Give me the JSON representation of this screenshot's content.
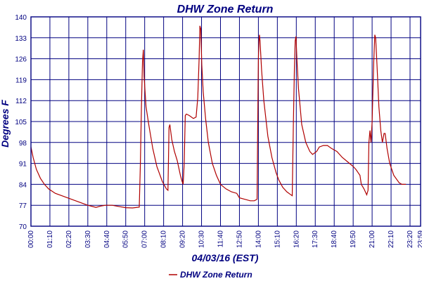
{
  "chart_data": {
    "type": "line",
    "title": "DHW Zone Return",
    "xlabel": "04/03/16 (EST)",
    "ylabel": "Degrees F",
    "ylim": [
      70,
      140
    ],
    "y_ticks": [
      "70",
      "77",
      "84",
      "91",
      "98",
      "105",
      "112",
      "119",
      "126",
      "133",
      "140"
    ],
    "x_ticks": [
      "00:00",
      "01:10",
      "02:20",
      "03:30",
      "04:40",
      "05:50",
      "07:00",
      "08:10",
      "09:20",
      "10:30",
      "11:40",
      "12:50",
      "14:00",
      "15:10",
      "16:20",
      "17:30",
      "18:40",
      "19:50",
      "21:00",
      "22:10",
      "23:20",
      "23:59"
    ],
    "grid": true,
    "legend_position": "bottom",
    "line_color": "#b00000",
    "grid_color": "#000080",
    "series": [
      {
        "name": "DHW Zone Return",
        "points": [
          [
            "00:00",
            96.5
          ],
          [
            "00:08",
            93
          ],
          [
            "00:20",
            89
          ],
          [
            "00:35",
            86
          ],
          [
            "00:50",
            84
          ],
          [
            "01:05",
            82.5
          ],
          [
            "01:30",
            81
          ],
          [
            "02:00",
            80
          ],
          [
            "02:30",
            79
          ],
          [
            "03:00",
            78
          ],
          [
            "03:30",
            77
          ],
          [
            "04:00",
            76.3
          ],
          [
            "04:20",
            76.8
          ],
          [
            "04:35",
            77
          ],
          [
            "05:00",
            77
          ],
          [
            "05:30",
            76.5
          ],
          [
            "05:50",
            76.2
          ],
          [
            "06:15",
            76.1
          ],
          [
            "06:40",
            76.4
          ],
          [
            "06:44",
            90
          ],
          [
            "06:48",
            110
          ],
          [
            "06:52",
            125
          ],
          [
            "06:55",
            129
          ],
          [
            "06:58",
            120
          ],
          [
            "07:05",
            110
          ],
          [
            "07:15",
            104
          ],
          [
            "07:30",
            96
          ],
          [
            "07:45",
            90
          ],
          [
            "08:05",
            85
          ],
          [
            "08:20",
            82.5
          ],
          [
            "08:26",
            82
          ],
          [
            "08:30",
            103
          ],
          [
            "08:33",
            104
          ],
          [
            "08:40",
            99
          ],
          [
            "08:50",
            95
          ],
          [
            "09:00",
            92
          ],
          [
            "09:12",
            87
          ],
          [
            "09:18",
            85
          ],
          [
            "09:22",
            84
          ],
          [
            "09:26",
            91
          ],
          [
            "09:30",
            107
          ],
          [
            "09:34",
            107.5
          ],
          [
            "09:45",
            107
          ],
          [
            "10:00",
            106
          ],
          [
            "10:10",
            106.5
          ],
          [
            "10:16",
            113
          ],
          [
            "10:21",
            126
          ],
          [
            "10:24",
            137
          ],
          [
            "10:27",
            136
          ],
          [
            "10:31",
            124
          ],
          [
            "10:36",
            115
          ],
          [
            "10:45",
            106
          ],
          [
            "10:55",
            98
          ],
          [
            "11:10",
            91
          ],
          [
            "11:25",
            87
          ],
          [
            "11:40",
            84
          ],
          [
            "12:00",
            82.5
          ],
          [
            "12:20",
            81.5
          ],
          [
            "12:40",
            81
          ],
          [
            "12:50",
            79.5
          ],
          [
            "13:10",
            79
          ],
          [
            "13:30",
            78.5
          ],
          [
            "13:45",
            78.5
          ],
          [
            "13:55",
            79
          ],
          [
            "13:59",
            118
          ],
          [
            "14:00",
            126
          ],
          [
            "14:02",
            132
          ],
          [
            "14:04",
            134
          ],
          [
            "14:06",
            132
          ],
          [
            "14:12",
            122
          ],
          [
            "14:20",
            112
          ],
          [
            "14:35",
            100
          ],
          [
            "14:50",
            93
          ],
          [
            "15:05",
            88
          ],
          [
            "15:15",
            85.5
          ],
          [
            "15:30",
            83
          ],
          [
            "15:45",
            81.5
          ],
          [
            "16:00",
            80.5
          ],
          [
            "16:05",
            80.2
          ],
          [
            "16:09",
            104
          ],
          [
            "16:13",
            123
          ],
          [
            "16:16",
            132
          ],
          [
            "16:19",
            133.5
          ],
          [
            "16:22",
            126
          ],
          [
            "16:28",
            116
          ],
          [
            "16:40",
            104
          ],
          [
            "16:55",
            98
          ],
          [
            "17:10",
            95
          ],
          [
            "17:20",
            94
          ],
          [
            "17:35",
            95
          ],
          [
            "17:45",
            96.5
          ],
          [
            "18:00",
            97
          ],
          [
            "18:15",
            97
          ],
          [
            "18:30",
            96
          ],
          [
            "18:50",
            95
          ],
          [
            "19:10",
            93
          ],
          [
            "19:30",
            91.5
          ],
          [
            "19:50",
            90
          ],
          [
            "20:00",
            89
          ],
          [
            "20:15",
            87
          ],
          [
            "20:20",
            84
          ],
          [
            "20:30",
            82.5
          ],
          [
            "20:40",
            80.5
          ],
          [
            "20:45",
            82
          ],
          [
            "20:48",
            98
          ],
          [
            "20:52",
            102
          ],
          [
            "20:56",
            98
          ],
          [
            "21:00",
            105
          ],
          [
            "21:03",
            115
          ],
          [
            "21:06",
            125
          ],
          [
            "21:10",
            134
          ],
          [
            "21:13",
            133
          ],
          [
            "21:18",
            124
          ],
          [
            "21:25",
            110
          ],
          [
            "21:32",
            102
          ],
          [
            "21:38",
            98
          ],
          [
            "21:44",
            101
          ],
          [
            "21:48",
            101
          ],
          [
            "21:55",
            96
          ],
          [
            "22:05",
            91
          ],
          [
            "22:20",
            87
          ],
          [
            "22:40",
            84.5
          ],
          [
            "22:50",
            84
          ],
          [
            "23:05",
            84
          ]
        ]
      }
    ]
  }
}
